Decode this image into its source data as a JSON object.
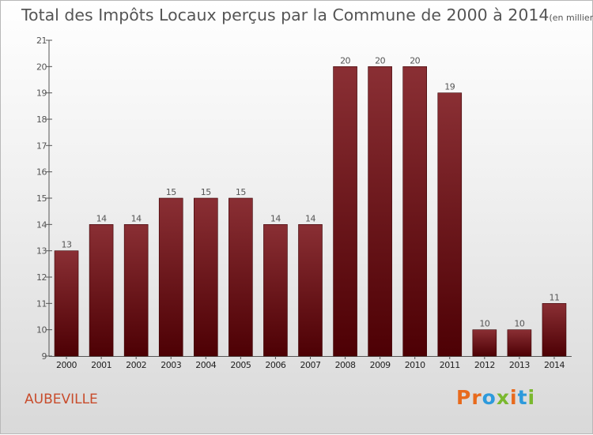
{
  "title": "Total des Impôts Locaux perçus par la Commune de 2000 à 2014",
  "unit": "(en milliers d'€)",
  "commune": "AUBEVILLE",
  "logo": {
    "text": "Proxiti",
    "colors": [
      "#e86a1c",
      "#e86a1c",
      "#2d9adc",
      "#7ab82e",
      "#e86a1c",
      "#2d9adc",
      "#7ab82e"
    ]
  },
  "colors": {
    "bar_top": "#8a2f34",
    "bar_bottom": "#4d0004",
    "bar_edge": "#3a0003",
    "axis": "#555555",
    "text": "#555555"
  },
  "chart_data": {
    "type": "bar",
    "categories": [
      "2000",
      "2001",
      "2002",
      "2003",
      "2004",
      "2005",
      "2006",
      "2007",
      "2008",
      "2009",
      "2010",
      "2011",
      "2012",
      "2013",
      "2014"
    ],
    "values": [
      13,
      14,
      14,
      15,
      15,
      15,
      14,
      14,
      20,
      20,
      20,
      19,
      10,
      10,
      11
    ],
    "data_labels": [
      "13",
      "14",
      "14",
      "15",
      "15",
      "15",
      "14",
      "14",
      "20",
      "20",
      "20",
      "19",
      "10",
      "10",
      "11"
    ],
    "y_ticks": [
      9,
      10,
      11,
      12,
      13,
      14,
      15,
      16,
      17,
      18,
      19,
      20,
      21
    ],
    "ylim": [
      9,
      21
    ],
    "grid": false,
    "legend": "none"
  }
}
